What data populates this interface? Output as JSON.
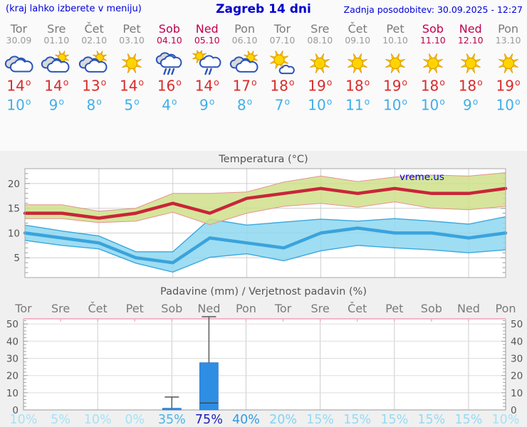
{
  "header": {
    "hint": "(kraj lahko izberete v meniju)",
    "title": "Zagreb 14 dni",
    "updated": "Zadnja posodobitev: 30.09.2025 - 12:27"
  },
  "watermark": "vreme.us",
  "titles": {
    "temperature": "Temperatura (°C)",
    "precipitation": "Padavine (mm) / Verjetnost padavin (%)"
  },
  "strip": {
    "days": [
      {
        "name": "Tor",
        "date": "30.09",
        "weekend": false,
        "icon": "cloudy",
        "high": 14,
        "low": 10,
        "prob": "10%"
      },
      {
        "name": "Sre",
        "date": "01.10",
        "weekend": false,
        "icon": "partly-cloudy",
        "high": 14,
        "low": 9,
        "prob": "5%"
      },
      {
        "name": "Čet",
        "date": "02.10",
        "weekend": false,
        "icon": "partly-cloudy",
        "high": 13,
        "low": 8,
        "prob": "10%"
      },
      {
        "name": "Pet",
        "date": "03.10",
        "weekend": false,
        "icon": "sunny",
        "high": 14,
        "low": 5,
        "prob": "0%"
      },
      {
        "name": "Sob",
        "date": "04.10",
        "weekend": true,
        "icon": "rain",
        "high": 16,
        "low": 4,
        "prob": "35%"
      },
      {
        "name": "Ned",
        "date": "05.10",
        "weekend": true,
        "icon": "sun-rain",
        "high": 14,
        "low": 9,
        "prob": "75%"
      },
      {
        "name": "Pon",
        "date": "06.10",
        "weekend": false,
        "icon": "partly-cloudy",
        "high": 17,
        "low": 8,
        "prob": "40%"
      },
      {
        "name": "Tor",
        "date": "07.10",
        "weekend": false,
        "icon": "mostly-sunny",
        "high": 18,
        "low": 7,
        "prob": "20%"
      },
      {
        "name": "Sre",
        "date": "08.10",
        "weekend": false,
        "icon": "sunny",
        "high": 19,
        "low": 10,
        "prob": "15%"
      },
      {
        "name": "Čet",
        "date": "09.10",
        "weekend": false,
        "icon": "sunny",
        "high": 18,
        "low": 11,
        "prob": "15%"
      },
      {
        "name": "Pet",
        "date": "10.10",
        "weekend": false,
        "icon": "sunny",
        "high": 19,
        "low": 10,
        "prob": "15%"
      },
      {
        "name": "Sob",
        "date": "11.10",
        "weekend": true,
        "icon": "sunny",
        "high": 18,
        "low": 10,
        "prob": "15%"
      },
      {
        "name": "Ned",
        "date": "12.10",
        "weekend": true,
        "icon": "sunny",
        "high": 18,
        "low": 9,
        "prob": "15%"
      },
      {
        "name": "Pon",
        "date": "13.10",
        "weekend": false,
        "icon": "sunny",
        "high": 19,
        "low": 10,
        "prob": "10%"
      }
    ]
  },
  "chart_data": [
    {
      "type": "line",
      "title": "Temperatura (°C)",
      "x_labels": [
        "Tor 30.09",
        "Sre 01.10",
        "Čet 02.10",
        "Pet 03.10",
        "Sob 04.10",
        "Ned 05.10",
        "Pon 06.10",
        "Tor 07.10",
        "Sre 08.10",
        "Čet 09.10",
        "Pet 10.10",
        "Sob 11.10",
        "Ned 12.10",
        "Pon 13.10"
      ],
      "ylim": [
        1,
        23
      ],
      "yticks": [
        5,
        10,
        15,
        20
      ],
      "grid": true,
      "series": [
        {
          "name": "max-temp",
          "color": "#c9253a",
          "values": [
            14,
            14,
            13,
            14,
            16,
            14,
            17,
            18,
            19,
            18,
            19,
            18,
            18,
            19
          ]
        },
        {
          "name": "max-temp-range-high",
          "values": [
            15.7,
            15.7,
            14.4,
            15,
            18,
            18,
            18.3,
            20.3,
            21.5,
            20.4,
            21.3,
            21.7,
            21.5,
            22.2
          ]
        },
        {
          "name": "max-temp-range-low",
          "values": [
            12.9,
            12.9,
            12.1,
            12.4,
            14.2,
            11.7,
            14,
            15.4,
            16,
            15.2,
            16.3,
            15,
            14.7,
            15.4
          ]
        },
        {
          "name": "min-temp",
          "color": "#3aa3dc",
          "values": [
            10,
            9,
            8,
            5,
            4,
            9,
            8,
            7,
            10,
            11,
            10,
            10,
            9,
            10
          ]
        },
        {
          "name": "min-temp-range-high",
          "values": [
            11.6,
            10.4,
            9.4,
            6.2,
            6.2,
            12.8,
            11.6,
            12.2,
            12.8,
            12.4,
            12.9,
            12.4,
            11.8,
            13.3
          ]
        },
        {
          "name": "min-temp-range-low",
          "values": [
            8.5,
            7.5,
            6.8,
            3.9,
            2.1,
            5.1,
            5.8,
            4.4,
            6.4,
            7.5,
            7,
            6.6,
            6,
            6.6
          ]
        }
      ]
    },
    {
      "type": "bar",
      "title": "Padavine (mm) / Verjetnost padavin (%)",
      "categories": [
        "Tor",
        "Sre",
        "Čet",
        "Pet",
        "Sob",
        "Ned",
        "Pon",
        "Tor",
        "Sre",
        "Čet",
        "Pet",
        "Sob",
        "Ned",
        "Pon"
      ],
      "values": [
        0,
        0,
        0,
        0,
        1,
        27.5,
        0,
        0,
        0,
        0,
        0,
        0,
        0,
        0
      ],
      "whisker_max": [
        0,
        0,
        0,
        0,
        7.5,
        53,
        0,
        0,
        0,
        0,
        0,
        0,
        0,
        0
      ],
      "inner_mark": [
        null,
        null,
        null,
        null,
        null,
        4,
        null,
        null,
        null,
        null,
        null,
        null,
        null,
        null
      ],
      "probabilities_pct": [
        10,
        5,
        10,
        0,
        35,
        75,
        40,
        20,
        15,
        15,
        15,
        15,
        15,
        10
      ],
      "ylim": [
        0,
        53
      ],
      "yticks": [
        0,
        10,
        20,
        30,
        40,
        50
      ],
      "grid": true
    }
  ],
  "colors": {
    "header_blue": "#0000dd",
    "weekend": "#c0004e",
    "weekday": "#7a7a7a",
    "high_temp": "#d92b2b",
    "low_temp": "#41aeea",
    "max_line": "#c9253a",
    "min_line": "#3aa3dc",
    "max_band": "#cfe08a",
    "min_band": "#8ed7f0",
    "bar_blue": "#2e8ee3",
    "pink_border": "#f2a0bd",
    "prob_0_10": "#a5e2f6",
    "prob_15": "#93dbf4",
    "prob_20": "#7fd3f1",
    "prob_35": "#49b4ea",
    "prob_40": "#2d9ce5",
    "prob_75": "#1a1cbe"
  }
}
